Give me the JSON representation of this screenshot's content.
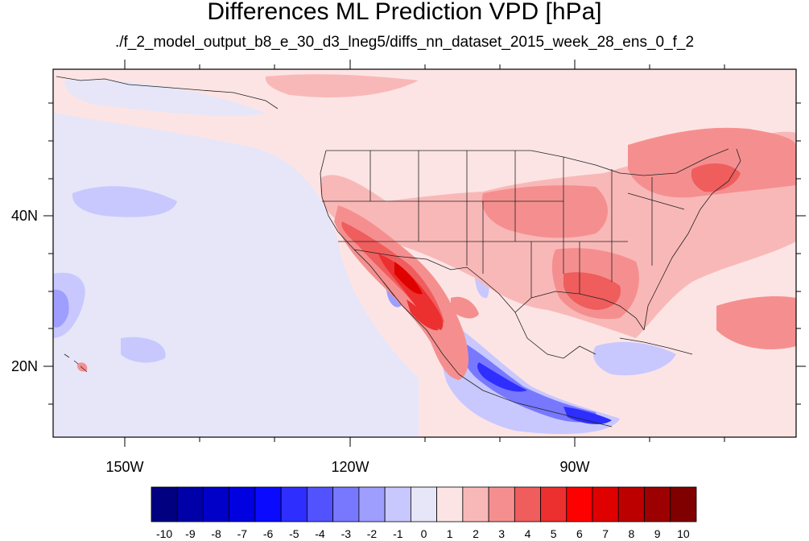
{
  "title": "Differences ML Prediction VPD [hPa]",
  "subtitle": "./f_2_model_output_b8_e_30_d3_lneg5/diffs_nn_dataset_2015_week_28_ens_0_f_2",
  "axes": {
    "lat_labels": [
      "40N",
      "20N"
    ],
    "lon_labels": [
      "150W",
      "120W",
      "90W"
    ]
  },
  "colorbar": {
    "labels": [
      "-10",
      "-9",
      "-8",
      "-7",
      "-6",
      "-5",
      "-4",
      "-3",
      "-2",
      "-1",
      "0",
      "1",
      "2",
      "3",
      "4",
      "5",
      "6",
      "7",
      "8",
      "9",
      "10"
    ],
    "colors": [
      "#000080",
      "#0000a8",
      "#0000c8",
      "#0000e0",
      "#0a0aff",
      "#2e2eff",
      "#5252ff",
      "#7878ff",
      "#9e9eff",
      "#c8c8ff",
      "#e6e6f8",
      "#fde4e4",
      "#f9b8b8",
      "#f58f8f",
      "#ef5d5d",
      "#ec2f2f",
      "#ff0000",
      "#df0000",
      "#bc0000",
      "#9c0000",
      "#800000"
    ]
  },
  "colors": {
    "background_ocean_pos": "#fde4e4",
    "background_ocean_neg": "#e6e6f8",
    "border_lines": "#222222"
  }
}
